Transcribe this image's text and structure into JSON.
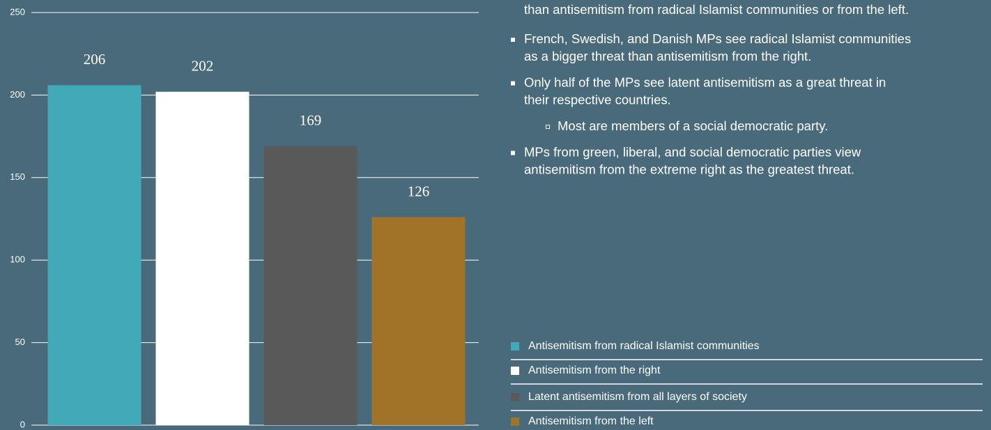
{
  "chart_data": {
    "type": "bar",
    "categories": [
      "Antisemitism from radical Islamist communities",
      "Antisemitism from the right",
      "Latent antisemitism from all layers of society",
      "Antisemitism from the left"
    ],
    "values": [
      206,
      202,
      169,
      126
    ],
    "colors": [
      "#42a9b8",
      "#ffffff",
      "#595959",
      "#a07328"
    ],
    "ylim": [
      0,
      250
    ],
    "yticks": [
      0,
      50,
      100,
      150,
      200,
      250
    ],
    "grid": true
  },
  "notes": {
    "fragment": "than antisemitism from radical Islamist communities or from the left.",
    "items": [
      {
        "level": 1,
        "lines": [
          "French, Swedish, and Danish MPs see radical Islamist communities",
          "as a bigger threat than antisemitism from the right."
        ]
      },
      {
        "level": 1,
        "lines": [
          "Only half of the MPs see latent antisemitism as a great threat in",
          "their respective countries."
        ]
      },
      {
        "level": 2,
        "lines": [
          "Most are members of a social democratic party."
        ]
      },
      {
        "level": 1,
        "lines": [
          "MPs from green, liberal, and social democratic parties view",
          "antisemitism from the extreme right as the greatest threat."
        ]
      }
    ]
  }
}
